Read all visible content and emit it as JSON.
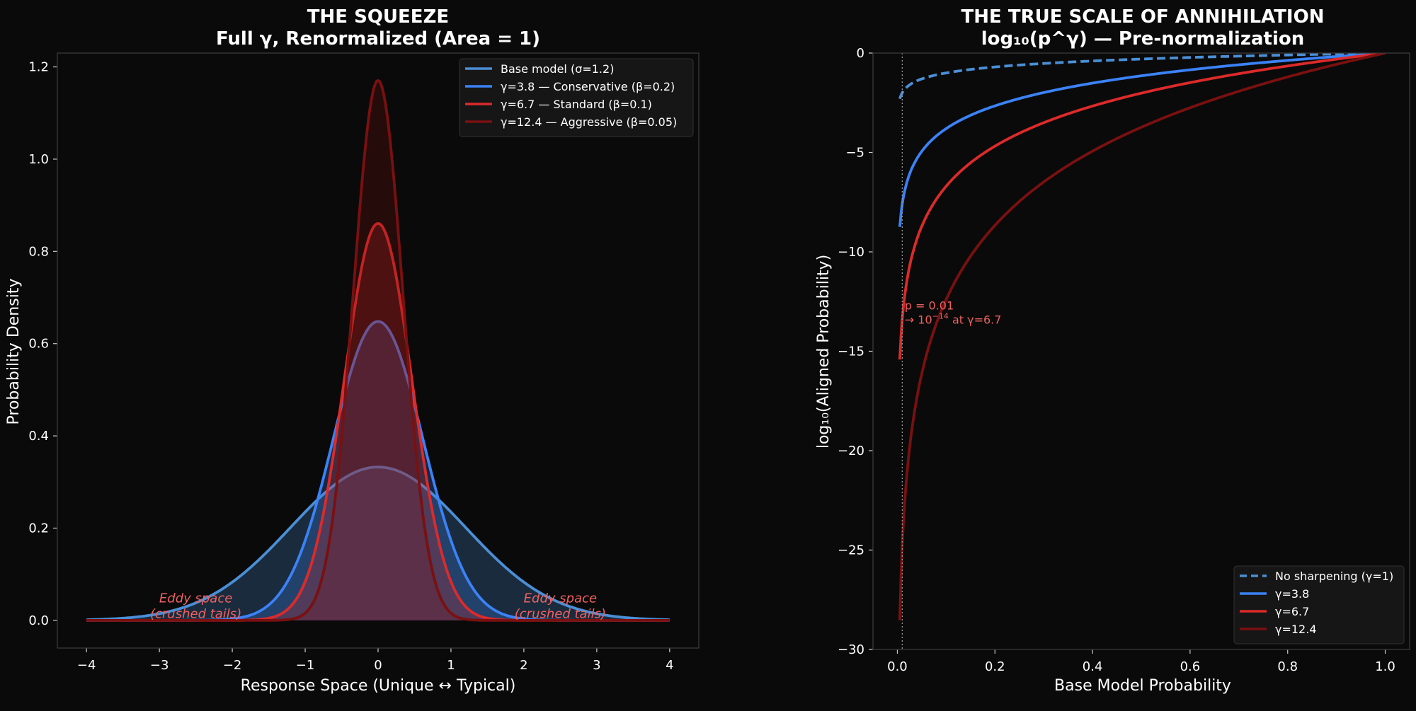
{
  "colors": {
    "background": "#0a0a0a",
    "base": "#4a8fd6",
    "g38": "#3b82f6",
    "g67": "#dc2a2a",
    "g124": "#7a1010",
    "annotation": "#f06060"
  },
  "chart_data": [
    {
      "type": "line",
      "title": "THE SQUEEZE",
      "subtitle": "Full γ, Renormalized (Area = 1)",
      "xlabel": "Response Space (Unique ↔ Typical)",
      "ylabel": "Probability Density",
      "xlim": [
        -4.4,
        4.4
      ],
      "ylim": [
        -0.06,
        1.23
      ],
      "xticks": [
        -4,
        -3,
        -2,
        -1,
        0,
        1,
        2,
        3,
        4
      ],
      "xtick_labels": [
        "−4",
        "−3",
        "−2",
        "−1",
        "0",
        "1",
        "2",
        "3",
        "4"
      ],
      "yticks": [
        0,
        0.2,
        0.4,
        0.6,
        0.8,
        1.0,
        1.2
      ],
      "ytick_labels": [
        "0.0",
        "0.2",
        "0.4",
        "0.6",
        "0.8",
        "1.0",
        "1.2"
      ],
      "x_range": [
        -4,
        4
      ],
      "grid": false,
      "legend_position": "top-right",
      "series": [
        {
          "name": "Base model (σ=1.2)",
          "gamma": 1,
          "sigma": 1.2,
          "color": "#4a8fd6",
          "filled": true
        },
        {
          "name": "γ=3.8 — Conservative (β=0.2)",
          "gamma": 3.8,
          "sigma": 0.6156,
          "color": "#3b82f6",
          "filled": true
        },
        {
          "name": "γ=6.7 — Standard (β=0.1)",
          "gamma": 6.7,
          "sigma": 0.4636,
          "color": "#dc2a2a",
          "filled": true
        },
        {
          "name": "γ=12.4 — Aggressive (β=0.05)",
          "gamma": 12.4,
          "sigma": 0.3408,
          "color": "#7a1010",
          "filled": true
        }
      ],
      "annotations": [
        {
          "text": [
            "Eddy space",
            "(crushed tails)"
          ],
          "x": -2.5,
          "y": 0.03
        },
        {
          "text": [
            "Eddy space",
            "(crushed tails)"
          ],
          "x": 2.5,
          "y": 0.03
        }
      ]
    },
    {
      "type": "line",
      "title": "THE TRUE SCALE OF ANNIHILATION",
      "subtitle": "log₁₀(p^γ) — Pre-normalization",
      "xlabel": "Base Model Probability",
      "ylabel": "log₁₀(Aligned Probability)",
      "xlim": [
        -0.05,
        1.05
      ],
      "ylim": [
        -30,
        0
      ],
      "xticks": [
        0,
        0.2,
        0.4,
        0.6,
        0.8,
        1.0
      ],
      "xtick_labels": [
        "0.0",
        "0.2",
        "0.4",
        "0.6",
        "0.8",
        "1.0"
      ],
      "yticks": [
        0,
        -5,
        -10,
        -15,
        -20,
        -25,
        -30
      ],
      "ytick_labels": [
        "0",
        "−5",
        "−10",
        "−15",
        "−20",
        "−25",
        "−30"
      ],
      "x_range": [
        0.005,
        1
      ],
      "grid": false,
      "legend_position": "bottom-right",
      "vline": {
        "x": 0.01,
        "style": "dotted"
      },
      "series": [
        {
          "name": "No sharpening (γ=1)",
          "gamma": 1,
          "color": "#4a8fd6",
          "dashed": true
        },
        {
          "name": "γ=3.8",
          "gamma": 3.8,
          "color": "#3b82f6"
        },
        {
          "name": "γ=6.7",
          "gamma": 6.7,
          "color": "#dc2a2a"
        },
        {
          "name": "γ=12.4",
          "gamma": 12.4,
          "color": "#7a1010"
        }
      ],
      "annotation": {
        "line1": "p = 0.01",
        "line2_prefix": "→ 10",
        "line2_sup": "−14",
        "line2_suffix": " at γ=6.7",
        "x": 0.015,
        "y": -13
      }
    }
  ]
}
